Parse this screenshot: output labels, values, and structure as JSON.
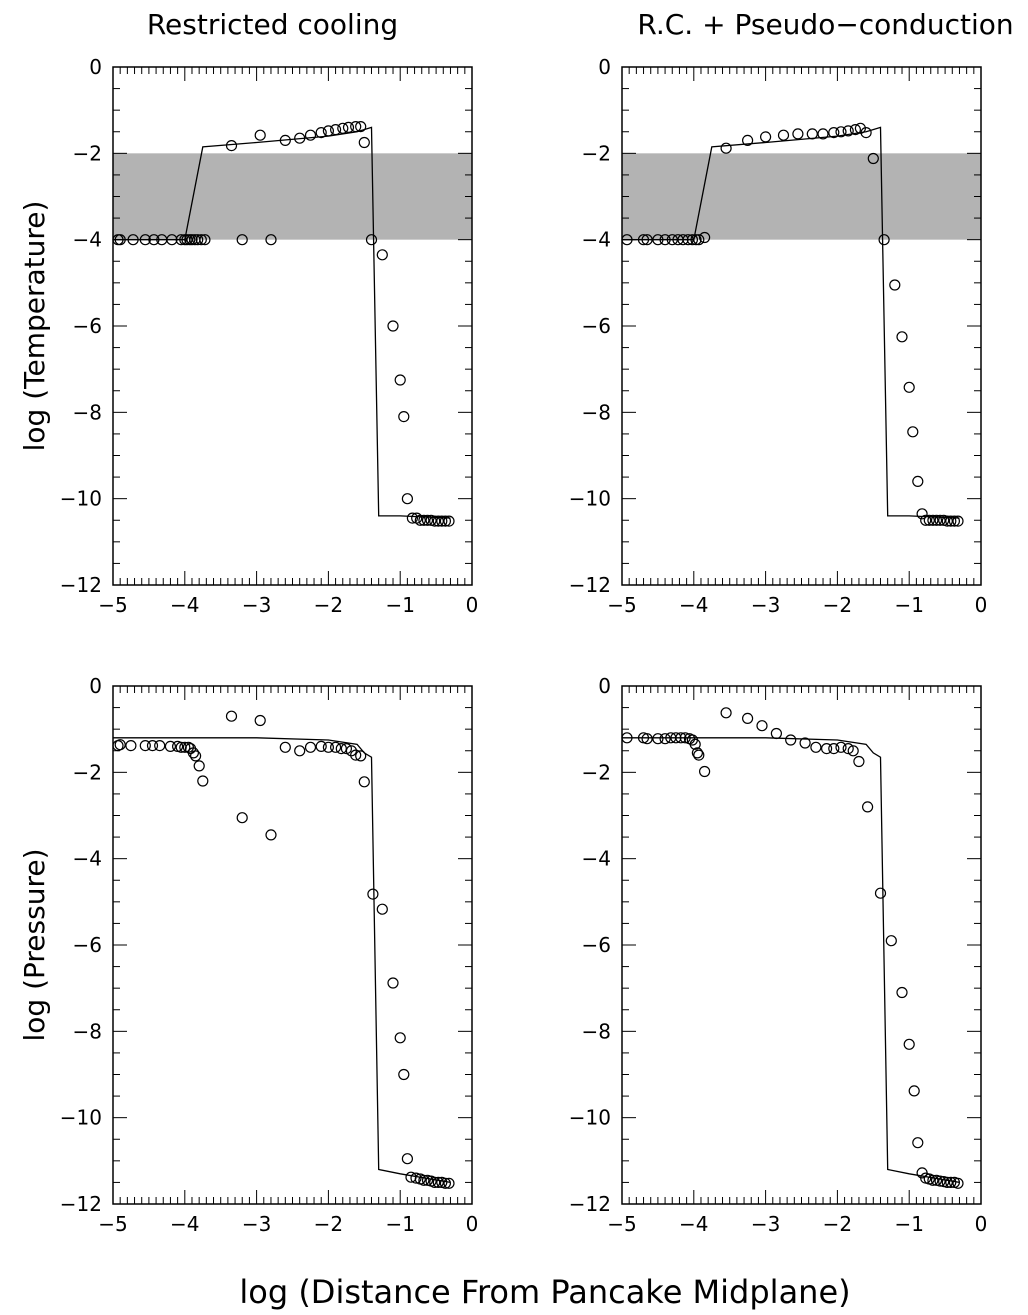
{
  "figure": {
    "shared_xlabel": "log (Distance From Pancake Midplane)"
  },
  "chart_data": [
    {
      "id": "temp-rc",
      "type": "scatter",
      "title": "Restricted cooling",
      "xlabel": "",
      "ylabel": "log (Temperature)",
      "xlim": [
        -5,
        0
      ],
      "ylim": [
        -12,
        0
      ],
      "xticks": [
        -5,
        -4,
        -3,
        -2,
        -1,
        0
      ],
      "yticks": [
        0,
        -2,
        -4,
        -6,
        -8,
        -10,
        -12
      ],
      "shaded_band": [
        -4,
        -2
      ],
      "model_line": [
        [
          -5,
          -4.0
        ],
        [
          -4.0,
          -4.0
        ],
        [
          -3.75,
          -1.85
        ],
        [
          -3.0,
          -1.75
        ],
        [
          -2.0,
          -1.6
        ],
        [
          -1.6,
          -1.5
        ],
        [
          -1.4,
          -1.4
        ],
        [
          -1.3,
          -10.4
        ],
        [
          -1.0,
          -10.4
        ],
        [
          -0.3,
          -10.45
        ]
      ],
      "series": [
        {
          "values": [
            [
              -4.93,
              -4.0
            ],
            [
              -4.9,
              -4.0
            ],
            [
              -4.72,
              -4.0
            ],
            [
              -4.55,
              -4.0
            ],
            [
              -4.43,
              -4.0
            ],
            [
              -4.32,
              -4.0
            ],
            [
              -4.18,
              -4.0
            ],
            [
              -4.05,
              -4.0
            ],
            [
              -4.0,
              -4.0
            ],
            [
              -3.97,
              -4.0
            ],
            [
              -3.93,
              -4.0
            ],
            [
              -3.9,
              -4.0
            ],
            [
              -3.86,
              -4.0
            ],
            [
              -3.82,
              -4.0
            ],
            [
              -3.77,
              -4.0
            ],
            [
              -3.72,
              -4.0
            ],
            [
              -3.2,
              -4.0
            ],
            [
              -2.8,
              -4.0
            ],
            [
              -3.35,
              -1.82
            ],
            [
              -2.95,
              -1.58
            ],
            [
              -2.6,
              -1.7
            ],
            [
              -2.4,
              -1.65
            ],
            [
              -2.25,
              -1.58
            ],
            [
              -2.1,
              -1.52
            ],
            [
              -2.0,
              -1.48
            ],
            [
              -1.9,
              -1.45
            ],
            [
              -1.8,
              -1.42
            ],
            [
              -1.72,
              -1.4
            ],
            [
              -1.62,
              -1.38
            ],
            [
              -1.55,
              -1.38
            ],
            [
              -1.5,
              -1.75
            ],
            [
              -1.4,
              -4.0
            ],
            [
              -1.25,
              -4.35
            ],
            [
              -1.1,
              -6.0
            ],
            [
              -1.0,
              -7.25
            ],
            [
              -0.95,
              -8.1
            ],
            [
              -0.9,
              -10.0
            ],
            [
              -0.83,
              -10.45
            ],
            [
              -0.77,
              -10.45
            ],
            [
              -0.72,
              -10.5
            ],
            [
              -0.67,
              -10.5
            ],
            [
              -0.62,
              -10.5
            ],
            [
              -0.57,
              -10.5
            ],
            [
              -0.52,
              -10.52
            ],
            [
              -0.47,
              -10.52
            ],
            [
              -0.42,
              -10.52
            ],
            [
              -0.37,
              -10.52
            ],
            [
              -0.32,
              -10.52
            ]
          ]
        }
      ]
    },
    {
      "id": "temp-rcpc",
      "type": "scatter",
      "title": "R.C. + Pseudo−conduction",
      "xlabel": "",
      "ylabel": "",
      "xlim": [
        -5,
        0
      ],
      "ylim": [
        -12,
        0
      ],
      "xticks": [
        -5,
        -4,
        -3,
        -2,
        -1,
        0
      ],
      "yticks": [
        0,
        -2,
        -4,
        -6,
        -8,
        -10,
        -12
      ],
      "shaded_band": [
        -4,
        -2
      ],
      "model_line": [
        [
          -5,
          -4.0
        ],
        [
          -4.0,
          -4.0
        ],
        [
          -3.75,
          -1.85
        ],
        [
          -3.0,
          -1.75
        ],
        [
          -2.0,
          -1.6
        ],
        [
          -1.6,
          -1.5
        ],
        [
          -1.4,
          -1.4
        ],
        [
          -1.3,
          -10.4
        ],
        [
          -1.0,
          -10.4
        ],
        [
          -0.3,
          -10.45
        ]
      ],
      "series": [
        {
          "values": [
            [
              -4.93,
              -4.0
            ],
            [
              -4.7,
              -4.0
            ],
            [
              -4.65,
              -4.0
            ],
            [
              -4.5,
              -4.0
            ],
            [
              -4.4,
              -4.0
            ],
            [
              -4.3,
              -4.0
            ],
            [
              -4.22,
              -4.0
            ],
            [
              -4.15,
              -4.0
            ],
            [
              -4.08,
              -4.0
            ],
            [
              -4.02,
              -4.0
            ],
            [
              -3.97,
              -4.0
            ],
            [
              -3.93,
              -4.0
            ],
            [
              -3.85,
              -3.95
            ],
            [
              -3.55,
              -1.88
            ],
            [
              -3.25,
              -1.7
            ],
            [
              -3.0,
              -1.62
            ],
            [
              -2.75,
              -1.58
            ],
            [
              -2.55,
              -1.55
            ],
            [
              -2.35,
              -1.55
            ],
            [
              -2.2,
              -1.55
            ],
            [
              -2.05,
              -1.52
            ],
            [
              -1.95,
              -1.5
            ],
            [
              -1.85,
              -1.48
            ],
            [
              -1.75,
              -1.45
            ],
            [
              -1.68,
              -1.42
            ],
            [
              -1.6,
              -1.52
            ],
            [
              -1.5,
              -2.12
            ],
            [
              -1.35,
              -4.0
            ],
            [
              -1.2,
              -5.05
            ],
            [
              -1.1,
              -6.25
            ],
            [
              -1.0,
              -7.42
            ],
            [
              -0.95,
              -8.45
            ],
            [
              -0.88,
              -9.6
            ],
            [
              -0.82,
              -10.35
            ],
            [
              -0.77,
              -10.5
            ],
            [
              -0.72,
              -10.5
            ],
            [
              -0.67,
              -10.5
            ],
            [
              -0.62,
              -10.5
            ],
            [
              -0.57,
              -10.5
            ],
            [
              -0.52,
              -10.5
            ],
            [
              -0.47,
              -10.52
            ],
            [
              -0.42,
              -10.52
            ],
            [
              -0.37,
              -10.52
            ],
            [
              -0.32,
              -10.52
            ]
          ]
        }
      ]
    },
    {
      "id": "press-rc",
      "type": "scatter",
      "title": "",
      "xlabel": "",
      "ylabel": "log (Pressure)",
      "xlim": [
        -5,
        0
      ],
      "ylim": [
        -12,
        0
      ],
      "xticks": [
        -5,
        -4,
        -3,
        -2,
        -1,
        0
      ],
      "yticks": [
        0,
        -2,
        -4,
        -6,
        -8,
        -10,
        -12
      ],
      "model_line": [
        [
          -5,
          -1.2
        ],
        [
          -4.0,
          -1.2
        ],
        [
          -3.0,
          -1.2
        ],
        [
          -2.0,
          -1.25
        ],
        [
          -1.6,
          -1.35
        ],
        [
          -1.5,
          -1.55
        ],
        [
          -1.4,
          -1.65
        ],
        [
          -1.3,
          -11.2
        ],
        [
          -1.0,
          -11.3
        ],
        [
          -0.3,
          -11.5
        ]
      ],
      "series": [
        {
          "values": [
            [
              -4.93,
              -1.38
            ],
            [
              -4.9,
              -1.36
            ],
            [
              -4.75,
              -1.38
            ],
            [
              -4.55,
              -1.38
            ],
            [
              -4.45,
              -1.38
            ],
            [
              -4.35,
              -1.38
            ],
            [
              -4.2,
              -1.4
            ],
            [
              -4.1,
              -1.4
            ],
            [
              -4.05,
              -1.42
            ],
            [
              -4.0,
              -1.42
            ],
            [
              -3.95,
              -1.42
            ],
            [
              -3.92,
              -1.45
            ],
            [
              -3.88,
              -1.55
            ],
            [
              -3.85,
              -1.62
            ],
            [
              -3.8,
              -1.85
            ],
            [
              -3.75,
              -2.2
            ],
            [
              -3.35,
              -0.7
            ],
            [
              -3.2,
              -3.05
            ],
            [
              -2.95,
              -0.8
            ],
            [
              -2.8,
              -3.45
            ],
            [
              -2.6,
              -1.42
            ],
            [
              -2.4,
              -1.5
            ],
            [
              -2.25,
              -1.42
            ],
            [
              -2.1,
              -1.4
            ],
            [
              -2.0,
              -1.42
            ],
            [
              -1.9,
              -1.42
            ],
            [
              -1.82,
              -1.45
            ],
            [
              -1.75,
              -1.45
            ],
            [
              -1.68,
              -1.5
            ],
            [
              -1.62,
              -1.6
            ],
            [
              -1.55,
              -1.62
            ],
            [
              -1.5,
              -2.22
            ],
            [
              -1.38,
              -4.82
            ],
            [
              -1.25,
              -5.17
            ],
            [
              -1.1,
              -6.88
            ],
            [
              -1.0,
              -8.15
            ],
            [
              -0.95,
              -9.0
            ],
            [
              -0.9,
              -10.95
            ],
            [
              -0.85,
              -11.38
            ],
            [
              -0.78,
              -11.4
            ],
            [
              -0.72,
              -11.42
            ],
            [
              -0.67,
              -11.45
            ],
            [
              -0.62,
              -11.45
            ],
            [
              -0.57,
              -11.47
            ],
            [
              -0.52,
              -11.5
            ],
            [
              -0.47,
              -11.5
            ],
            [
              -0.42,
              -11.5
            ],
            [
              -0.37,
              -11.52
            ],
            [
              -0.32,
              -11.52
            ]
          ]
        }
      ]
    },
    {
      "id": "press-rcpc",
      "type": "scatter",
      "title": "",
      "xlabel": "",
      "ylabel": "",
      "xlim": [
        -5,
        0
      ],
      "ylim": [
        -12,
        0
      ],
      "xticks": [
        -5,
        -4,
        -3,
        -2,
        -1,
        0
      ],
      "yticks": [
        0,
        -2,
        -4,
        -6,
        -8,
        -10,
        -12
      ],
      "model_line": [
        [
          -5,
          -1.2
        ],
        [
          -4.0,
          -1.2
        ],
        [
          -3.0,
          -1.2
        ],
        [
          -2.0,
          -1.25
        ],
        [
          -1.6,
          -1.35
        ],
        [
          -1.5,
          -1.55
        ],
        [
          -1.4,
          -1.65
        ],
        [
          -1.3,
          -11.2
        ],
        [
          -1.0,
          -11.3
        ],
        [
          -0.3,
          -11.5
        ]
      ],
      "series": [
        {
          "values": [
            [
              -4.93,
              -1.2
            ],
            [
              -4.7,
              -1.2
            ],
            [
              -4.65,
              -1.22
            ],
            [
              -4.5,
              -1.22
            ],
            [
              -4.4,
              -1.22
            ],
            [
              -4.32,
              -1.2
            ],
            [
              -4.25,
              -1.2
            ],
            [
              -4.18,
              -1.2
            ],
            [
              -4.12,
              -1.2
            ],
            [
              -4.06,
              -1.22
            ],
            [
              -4.02,
              -1.25
            ],
            [
              -3.98,
              -1.35
            ],
            [
              -3.95,
              -1.55
            ],
            [
              -3.93,
              -1.6
            ],
            [
              -3.85,
              -1.98
            ],
            [
              -3.55,
              -0.62
            ],
            [
              -3.25,
              -0.75
            ],
            [
              -3.05,
              -0.92
            ],
            [
              -2.85,
              -1.1
            ],
            [
              -2.65,
              -1.25
            ],
            [
              -2.45,
              -1.32
            ],
            [
              -2.3,
              -1.42
            ],
            [
              -2.15,
              -1.45
            ],
            [
              -2.05,
              -1.45
            ],
            [
              -1.95,
              -1.42
            ],
            [
              -1.85,
              -1.45
            ],
            [
              -1.78,
              -1.5
            ],
            [
              -1.7,
              -1.75
            ],
            [
              -1.58,
              -2.8
            ],
            [
              -1.4,
              -4.8
            ],
            [
              -1.25,
              -5.9
            ],
            [
              -1.1,
              -7.1
            ],
            [
              -1.0,
              -8.3
            ],
            [
              -0.93,
              -9.38
            ],
            [
              -0.88,
              -10.58
            ],
            [
              -0.82,
              -11.28
            ],
            [
              -0.77,
              -11.4
            ],
            [
              -0.72,
              -11.42
            ],
            [
              -0.67,
              -11.45
            ],
            [
              -0.62,
              -11.45
            ],
            [
              -0.57,
              -11.47
            ],
            [
              -0.52,
              -11.48
            ],
            [
              -0.47,
              -11.5
            ],
            [
              -0.42,
              -11.5
            ],
            [
              -0.37,
              -11.5
            ],
            [
              -0.32,
              -11.52
            ]
          ]
        }
      ]
    }
  ]
}
